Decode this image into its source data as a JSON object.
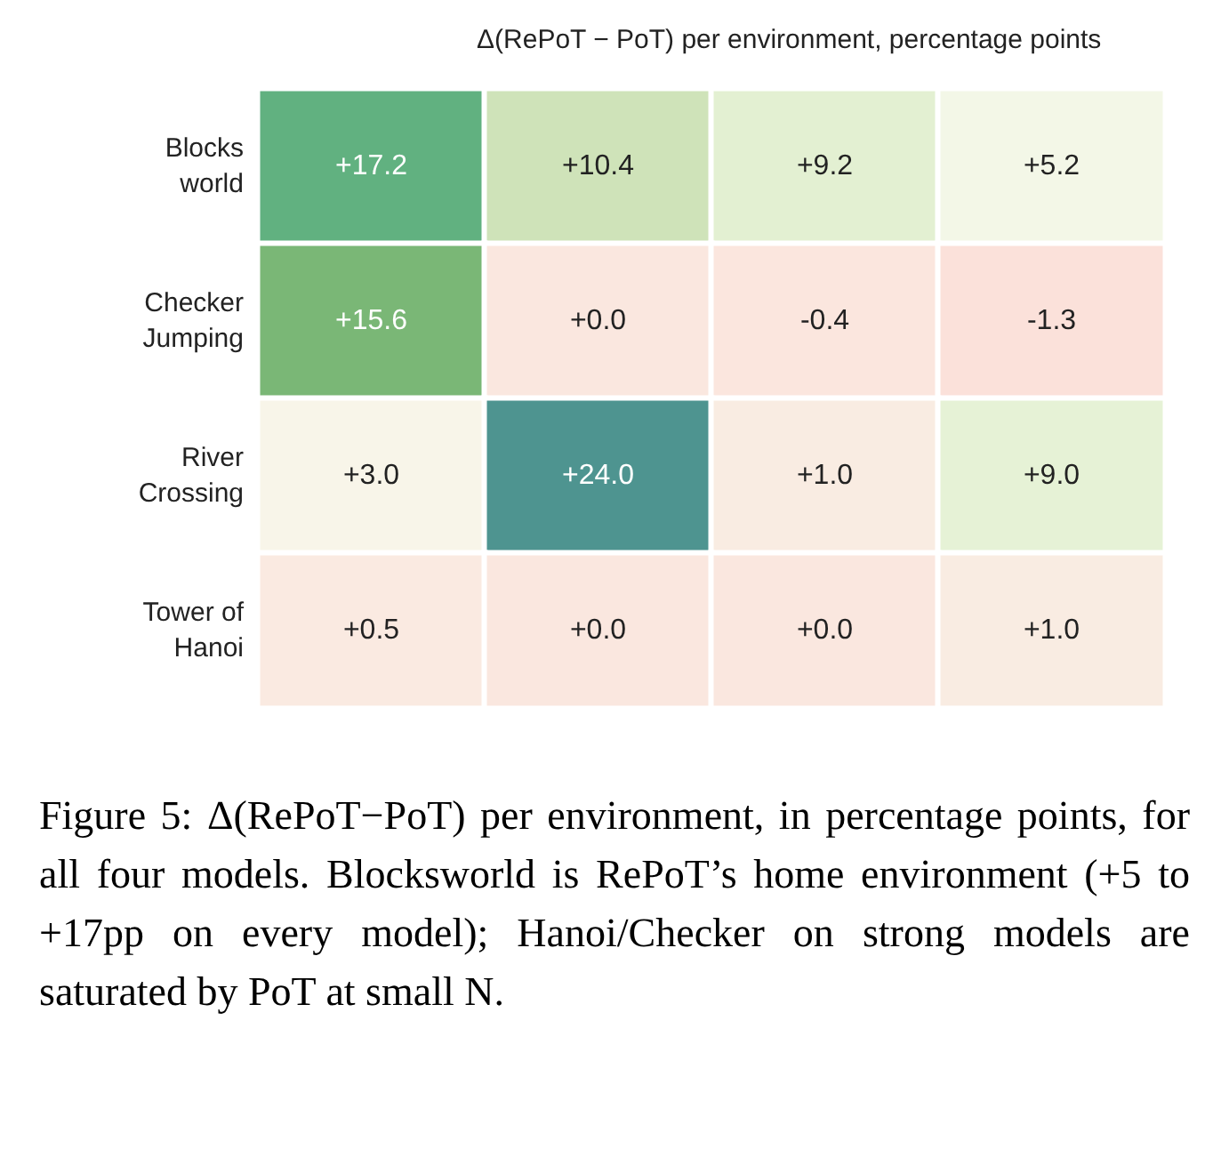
{
  "chart_data": {
    "type": "heatmap",
    "title": "Δ(RePoT − PoT) per environment, percentage points",
    "categories": [
      null,
      null,
      null,
      null
    ],
    "y_categories": [
      "Blocks\nworld",
      "Checker\nJumping",
      "River\nCrossing",
      "Tower of\nHanoi"
    ],
    "cells": [
      [
        17.2,
        10.4,
        9.2,
        5.2
      ],
      [
        15.6,
        0.0,
        -0.4,
        -1.3
      ],
      [
        3.0,
        24.0,
        1.0,
        9.0
      ],
      [
        0.5,
        0.0,
        0.0,
        1.0
      ]
    ],
    "cell_labels": [
      [
        "+17.2",
        "+10.4",
        "+9.2",
        "+5.2"
      ],
      [
        "+15.6",
        "+0.0",
        "-0.4",
        "-1.3"
      ],
      [
        "+3.0",
        "+24.0",
        "+1.0",
        "+9.0"
      ],
      [
        "+0.5",
        "+0.0",
        "+0.0",
        "+1.0"
      ]
    ],
    "annotations": [
      "Figure 5: Δ(RePoT−PoT) per environment, in percentage points, for all four models. Blocksworld is RePoT’s home environment (+5 to +17pp on every model); Hanoi/Checker on strong models are saturated by PoT at small N."
    ]
  }
}
